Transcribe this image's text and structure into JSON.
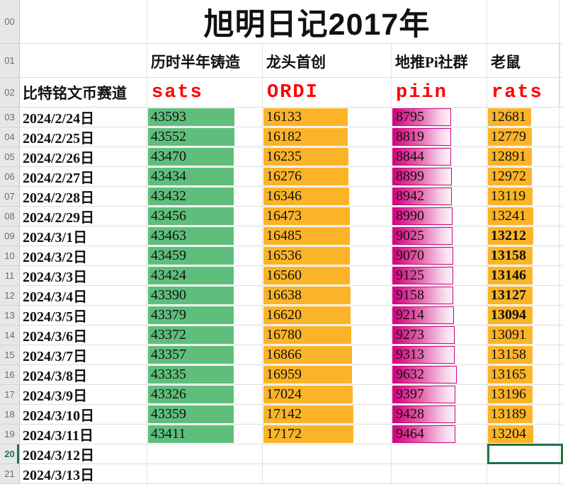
{
  "sheet": {
    "title": "旭明日记2017年",
    "corner_row_numbers": [
      "00",
      "01",
      "02"
    ],
    "row2_label": "比特铭文币赛道",
    "tracks": [
      {
        "desc": "历时半年铸造",
        "ticker": "sats",
        "bar_style": "green-solid",
        "bar_color": "#5FBE7C",
        "scale_max": 58000
      },
      {
        "desc": "龙头首创",
        "ticker": "ORDI",
        "bar_style": "orange-solid",
        "bar_color": "#FBB428",
        "scale_max": 24500
      },
      {
        "desc": "地推Pi社群",
        "ticker": "piin",
        "bar_style": "pink-gradient",
        "bar_color": "#D2017F",
        "scale_max": 14200
      },
      {
        "desc": "老鼠",
        "ticker": "rats",
        "bar_style": "orange-solid",
        "bar_color": "#FBB428",
        "scale_max": 21000
      }
    ],
    "chart_data": {
      "type": "table",
      "title": "旭明日记2017年",
      "categories": [
        "sats",
        "ORDI",
        "piin",
        "rats"
      ],
      "x": [
        "2024/2/24",
        "2024/2/25",
        "2024/2/26",
        "2024/2/27",
        "2024/2/28",
        "2024/2/29",
        "2024/3/1",
        "2024/3/2",
        "2024/3/3",
        "2024/3/4",
        "2024/3/5",
        "2024/3/6",
        "2024/3/7",
        "2024/3/8",
        "2024/3/9",
        "2024/3/10",
        "2024/3/11"
      ],
      "series": [
        {
          "name": "sats",
          "values": [
            43593,
            43552,
            43470,
            43434,
            43432,
            43456,
            43463,
            43459,
            43424,
            43390,
            43379,
            43372,
            43357,
            43335,
            43326,
            43359,
            43411
          ]
        },
        {
          "name": "ORDI",
          "values": [
            16133,
            16182,
            16235,
            16276,
            16346,
            16473,
            16485,
            16536,
            16560,
            16638,
            16620,
            16780,
            16866,
            16959,
            17024,
            17142,
            17172
          ]
        },
        {
          "name": "piin",
          "values": [
            8795,
            8819,
            8844,
            8899,
            8942,
            8990,
            9025,
            9070,
            9125,
            9158,
            9214,
            9273,
            9313,
            9632,
            9397,
            9428,
            9464
          ]
        },
        {
          "name": "rats",
          "values": [
            12681,
            12779,
            12891,
            12972,
            13119,
            13241,
            13212,
            13158,
            13146,
            13127,
            13094,
            13091,
            13158,
            13165,
            13196,
            13189,
            13204
          ]
        }
      ]
    },
    "rows": [
      {
        "n": "03",
        "date": "2024/2/24日",
        "values": [
          43593,
          16133,
          8795,
          12681
        ],
        "rats_bold": false
      },
      {
        "n": "04",
        "date": "2024/2/25日",
        "values": [
          43552,
          16182,
          8819,
          12779
        ],
        "rats_bold": false
      },
      {
        "n": "05",
        "date": "2024/2/26日",
        "values": [
          43470,
          16235,
          8844,
          12891
        ],
        "rats_bold": false
      },
      {
        "n": "06",
        "date": "2024/2/27日",
        "values": [
          43434,
          16276,
          8899,
          12972
        ],
        "rats_bold": false
      },
      {
        "n": "07",
        "date": "2024/2/28日",
        "values": [
          43432,
          16346,
          8942,
          13119
        ],
        "rats_bold": false
      },
      {
        "n": "08",
        "date": "2024/2/29日",
        "values": [
          43456,
          16473,
          8990,
          13241
        ],
        "rats_bold": false
      },
      {
        "n": "09",
        "date": "2024/3/1日",
        "values": [
          43463,
          16485,
          9025,
          13212
        ],
        "rats_bold": true
      },
      {
        "n": "10",
        "date": "2024/3/2日",
        "values": [
          43459,
          16536,
          9070,
          13158
        ],
        "rats_bold": true
      },
      {
        "n": "11",
        "date": "2024/3/3日",
        "values": [
          43424,
          16560,
          9125,
          13146
        ],
        "rats_bold": true
      },
      {
        "n": "12",
        "date": "2024/3/4日",
        "values": [
          43390,
          16638,
          9158,
          13127
        ],
        "rats_bold": true
      },
      {
        "n": "13",
        "date": "2024/3/5日",
        "values": [
          43379,
          16620,
          9214,
          13094
        ],
        "rats_bold": true
      },
      {
        "n": "14",
        "date": "2024/3/6日",
        "values": [
          43372,
          16780,
          9273,
          13091
        ],
        "rats_bold": false
      },
      {
        "n": "15",
        "date": "2024/3/7日",
        "values": [
          43357,
          16866,
          9313,
          13158
        ],
        "rats_bold": false
      },
      {
        "n": "16",
        "date": "2024/3/8日",
        "values": [
          43335,
          16959,
          9632,
          13165
        ],
        "rats_bold": false
      },
      {
        "n": "17",
        "date": "2024/3/9日",
        "values": [
          43326,
          17024,
          9397,
          13196
        ],
        "rats_bold": false
      },
      {
        "n": "18",
        "date": "2024/3/10日",
        "values": [
          43359,
          17142,
          9428,
          13189
        ],
        "rats_bold": false
      },
      {
        "n": "19",
        "date": "2024/3/11日",
        "values": [
          43411,
          17172,
          9464,
          13204
        ],
        "rats_bold": false
      },
      {
        "n": "20",
        "date": "2024/3/12日",
        "values": [
          null,
          null,
          null,
          null
        ],
        "rats_bold": false
      },
      {
        "n": "21",
        "date": "2024/3/13日",
        "values": [
          null,
          null,
          null,
          null
        ],
        "rats_bold": false
      }
    ],
    "selection": {
      "row_number": "20",
      "date": "2024/3/12日",
      "column_ticker": "rats"
    },
    "colors": {
      "title_text": "#111111",
      "ticker_text": "#FF0000",
      "green_bar": "#5FBE7C",
      "orange_bar": "#FBB428",
      "pink_bar": "#D2017F",
      "selection_border": "#217346",
      "row_header_bg": "#E7E7E7",
      "row_header_text": "#6C6C6C",
      "gridline": "#DDDDDD"
    }
  }
}
